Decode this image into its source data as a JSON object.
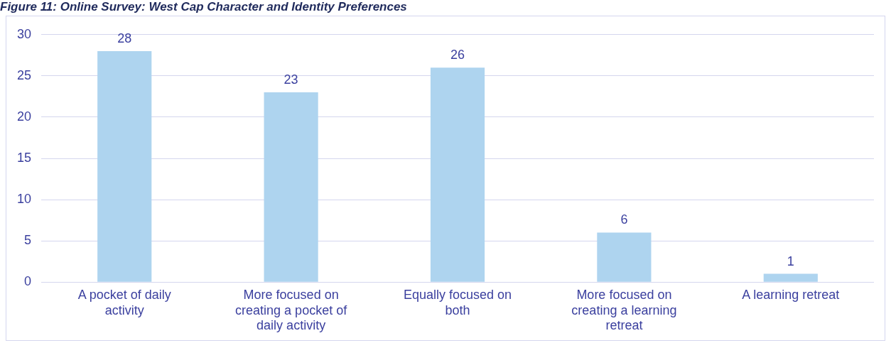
{
  "chart_data": {
    "type": "bar",
    "title": "Figure 11: Online Survey: West Cap Character and Identity Preferences",
    "categories": [
      "A pocket of daily activity",
      "More focused on creating a pocket of daily activity",
      "Equally focused on both",
      "More focused on creating a learning retreat",
      "A learning retreat"
    ],
    "values": [
      28,
      23,
      26,
      6,
      1
    ],
    "color": "#aed4ef",
    "ylim": [
      0,
      30
    ],
    "yticks": [
      0,
      5,
      10,
      15,
      20,
      25,
      30
    ],
    "grid": "y",
    "data_labels": true,
    "legend": false
  }
}
